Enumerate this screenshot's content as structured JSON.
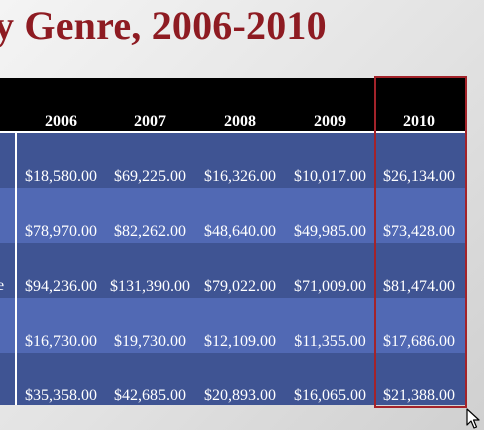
{
  "slide": {
    "title": "y Genre, 2006-2010"
  },
  "table": {
    "years": [
      "2006",
      "2007",
      "2008",
      "2009",
      "2010"
    ],
    "stub_fragment": "e",
    "rows": [
      [
        "$18,580.00",
        "$69,225.00",
        "$16,326.00",
        "$10,017.00",
        "$26,134.00"
      ],
      [
        "$78,970.00",
        "$82,262.00",
        "$48,640.00",
        "$49,985.00",
        "$73,428.00"
      ],
      [
        "$94,236.00",
        "$131,390.00",
        "$79,022.00",
        "$71,009.00",
        "$81,474.00"
      ],
      [
        "$16,730.00",
        "$19,730.00",
        "$12,109.00",
        "$11,355.00",
        "$17,686.00"
      ],
      [
        "$35,358.00",
        "$42,685.00",
        "$20,893.00",
        "$16,065.00",
        "$21,388.00"
      ]
    ],
    "selected_column": "2010"
  },
  "colors": {
    "title": "#8e1b22",
    "header_band": "#000000",
    "row_dark": "#3f5493",
    "row_light": "#5169b4",
    "selection_border": "#a3232a"
  },
  "cursor": "arrow-pointer-icon"
}
